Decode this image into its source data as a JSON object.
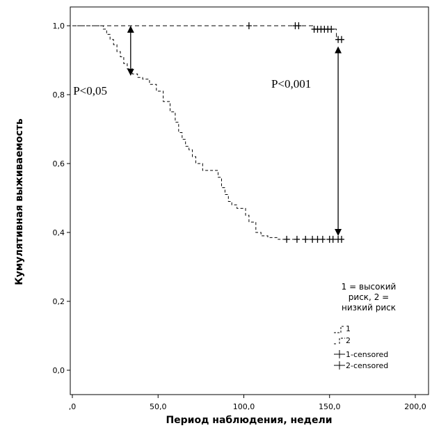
{
  "chart_data": {
    "type": "line",
    "xlabel": "Период наблюдения, недели",
    "ylabel": "Кумулятивная выживаемость",
    "xlim": [
      0,
      200
    ],
    "ylim": [
      0,
      1.0
    ],
    "x_ticks": [
      ",0",
      "50,0",
      "100,0",
      "150,0",
      "200,0"
    ],
    "y_ticks": [
      "0,0",
      "0,2",
      "0,4",
      "0,6",
      "0,8",
      "1,0"
    ],
    "grid": false,
    "series": [
      {
        "name": "1",
        "step_points": [
          [
            0,
            1.0
          ],
          [
            18,
            1.0
          ],
          [
            18,
            0.99
          ],
          [
            20,
            0.99
          ],
          [
            20,
            0.975
          ],
          [
            22,
            0.975
          ],
          [
            22,
            0.96
          ],
          [
            24,
            0.96
          ],
          [
            24,
            0.945
          ],
          [
            26,
            0.945
          ],
          [
            26,
            0.925
          ],
          [
            28,
            0.925
          ],
          [
            28,
            0.91
          ],
          [
            30,
            0.91
          ],
          [
            30,
            0.89
          ],
          [
            32,
            0.89
          ],
          [
            32,
            0.875
          ],
          [
            35,
            0.875
          ],
          [
            35,
            0.86
          ],
          [
            38,
            0.86
          ],
          [
            38,
            0.85
          ],
          [
            41,
            0.85
          ],
          [
            41,
            0.845
          ],
          [
            45,
            0.845
          ],
          [
            45,
            0.83
          ],
          [
            49,
            0.83
          ],
          [
            49,
            0.81
          ],
          [
            53,
            0.81
          ],
          [
            53,
            0.78
          ],
          [
            57,
            0.78
          ],
          [
            57,
            0.75
          ],
          [
            60,
            0.75
          ],
          [
            60,
            0.72
          ],
          [
            62,
            0.72
          ],
          [
            62,
            0.69
          ],
          [
            64,
            0.69
          ],
          [
            64,
            0.67
          ],
          [
            66,
            0.67
          ],
          [
            66,
            0.65
          ],
          [
            68,
            0.65
          ],
          [
            68,
            0.64
          ],
          [
            70,
            0.64
          ],
          [
            70,
            0.62
          ],
          [
            72,
            0.62
          ],
          [
            72,
            0.6
          ],
          [
            76,
            0.6
          ],
          [
            76,
            0.58
          ],
          [
            85,
            0.58
          ],
          [
            85,
            0.56
          ],
          [
            87,
            0.56
          ],
          [
            87,
            0.53
          ],
          [
            89,
            0.53
          ],
          [
            89,
            0.51
          ],
          [
            91,
            0.51
          ],
          [
            91,
            0.49
          ],
          [
            93,
            0.49
          ],
          [
            93,
            0.48
          ],
          [
            96,
            0.48
          ],
          [
            96,
            0.47
          ],
          [
            101,
            0.47
          ],
          [
            101,
            0.45
          ],
          [
            103,
            0.45
          ],
          [
            103,
            0.43
          ],
          [
            107,
            0.43
          ],
          [
            107,
            0.4
          ],
          [
            110,
            0.4
          ],
          [
            110,
            0.39
          ],
          [
            114,
            0.39
          ],
          [
            114,
            0.385
          ],
          [
            120,
            0.385
          ],
          [
            120,
            0.38
          ],
          [
            158,
            0.38
          ]
        ],
        "censored_x": [
          125,
          131,
          136,
          140,
          143,
          146,
          150,
          152,
          155,
          157
        ],
        "censored_y": 0.38
      },
      {
        "name": "2",
        "step_points": [
          [
            0,
            1.0
          ],
          [
            141,
            1.0
          ],
          [
            141,
            0.99
          ],
          [
            154,
            0.99
          ],
          [
            154,
            0.96
          ],
          [
            158,
            0.96
          ]
        ],
        "censored_x": [
          103,
          130,
          132,
          141,
          143,
          145,
          147,
          149,
          151,
          155,
          157
        ],
        "censored_y_by_x": [
          1.0,
          1.0,
          1.0,
          0.99,
          0.99,
          0.99,
          0.99,
          0.99,
          0.99,
          0.96,
          0.96
        ]
      }
    ],
    "annotations": [
      {
        "text": "P<0,05",
        "x": 0.5,
        "y": 0.8
      },
      {
        "text": "P<0,001",
        "x": 116,
        "y": 0.82
      }
    ],
    "legend": {
      "placement": "bottom-right",
      "title": [
        "1 = высокий",
        "риск, 2 =",
        "низкий риск"
      ],
      "entries": [
        "1",
        "2",
        "1-censored",
        "2-censored"
      ]
    }
  }
}
